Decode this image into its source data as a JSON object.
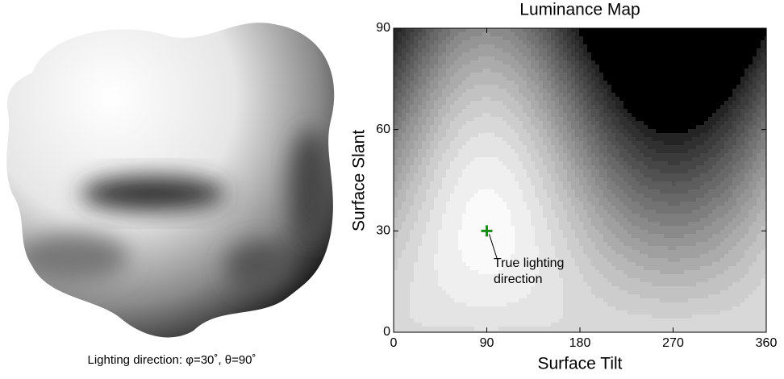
{
  "left_panel": {
    "caption": "Lighting direction: φ=30˚, θ=90˚"
  },
  "chart_data": {
    "type": "contour",
    "title": "Luminance Map",
    "x_label": "Surface Tilt",
    "y_label": "Surface Slant",
    "xlim": [
      0,
      360
    ],
    "ylim": [
      0,
      90
    ],
    "xticks": [
      0,
      90,
      180,
      270,
      360
    ],
    "yticks": [
      0,
      30,
      60,
      90
    ],
    "marker": {
      "x": 90,
      "y": 30,
      "color": "#1a8a1a"
    },
    "annotation": "True lighting direction"
  }
}
